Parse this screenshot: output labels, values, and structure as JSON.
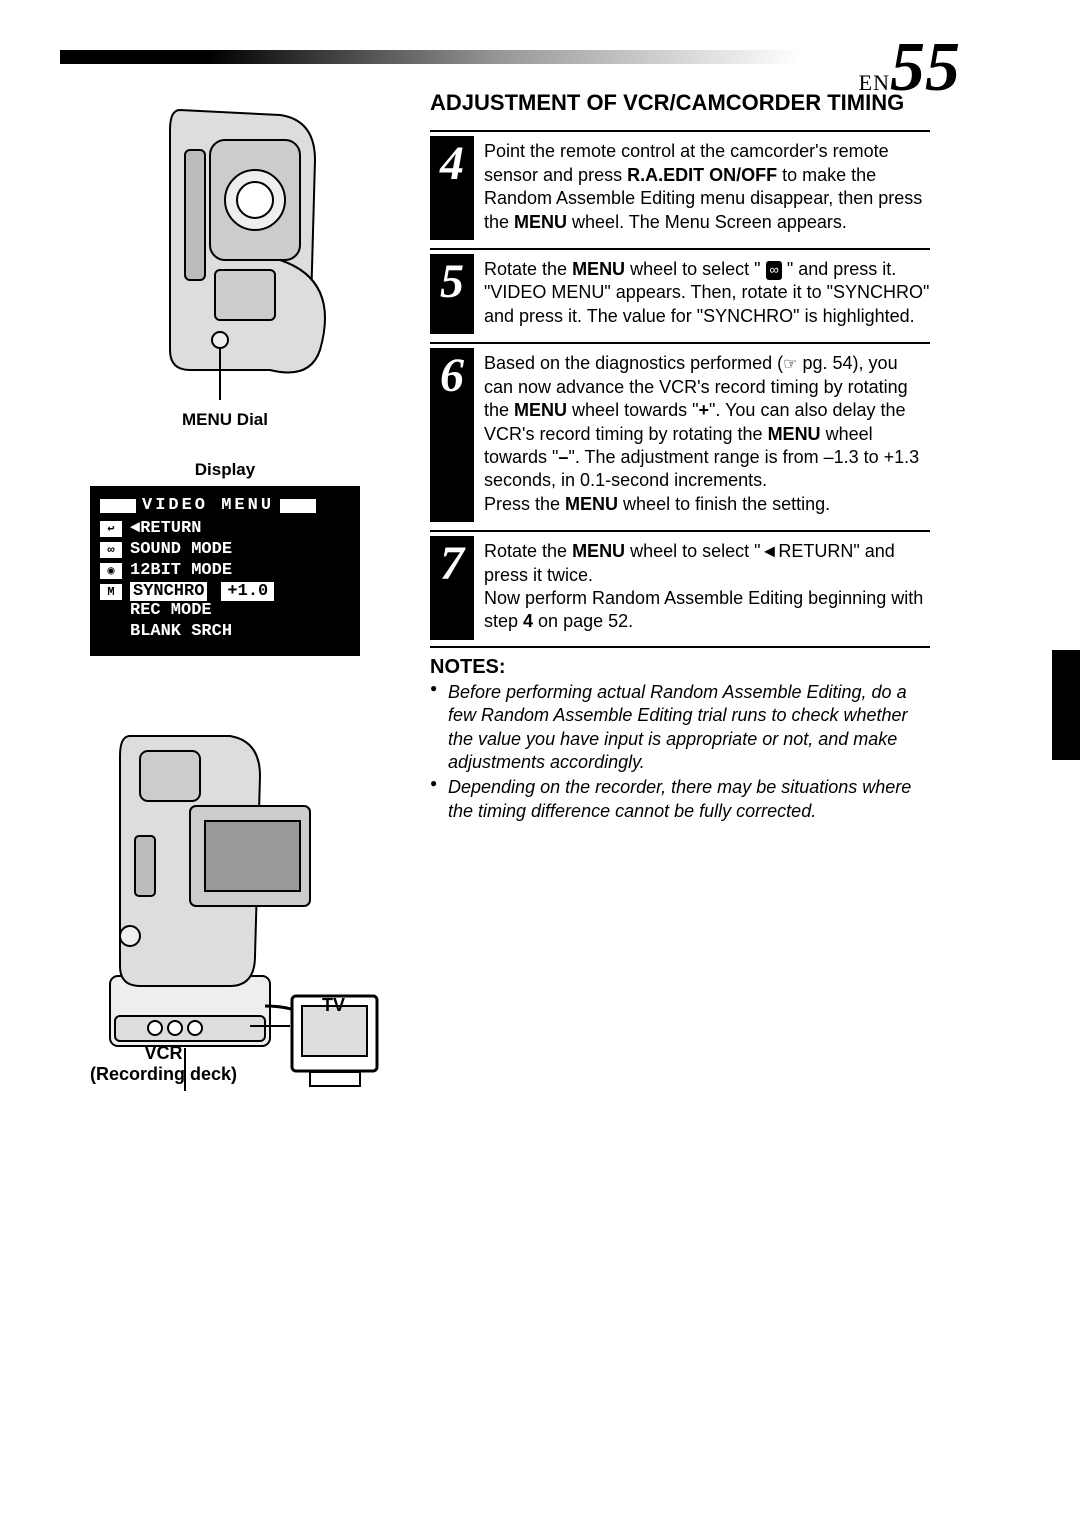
{
  "page": {
    "lang": "EN",
    "number": "55"
  },
  "left": {
    "menu_dial_label": "MENU Dial",
    "display_label": "Display",
    "video_menu": {
      "title": "VIDEO MENU",
      "items": [
        "◄RETURN",
        "SOUND MODE",
        "12BIT MODE"
      ],
      "highlighted": "SYNCHRO",
      "highlighted_value": "+1.0",
      "items_after": [
        "REC MODE",
        "BLANK SRCH"
      ]
    },
    "vcr_label": "VCR",
    "vcr_sub": "(Recording deck)",
    "tv_label": "TV"
  },
  "section_title": "ADJUSTMENT OF VCR/CAMCORDER TIMING",
  "steps": [
    {
      "num": "4",
      "parts": [
        {
          "t": "Point the remote control at the camcorder's remote sensor and press "
        },
        {
          "b": "R.A.EDIT ON/OFF"
        },
        {
          "t": " to make the Random Assemble Editing menu disappear, then press the "
        },
        {
          "b": "MENU"
        },
        {
          "t": " wheel. The Menu Screen appears."
        }
      ]
    },
    {
      "num": "5",
      "parts": [
        {
          "t": "Rotate the "
        },
        {
          "b": "MENU"
        },
        {
          "t": " wheel to select \" "
        },
        {
          "icon": "tape"
        },
        {
          "t": " \" and press it. \"VIDEO MENU\" appears. Then, rotate it to \"SYNCHRO\" and press it. The value for \"SYNCHRO\" is highlighted."
        }
      ]
    },
    {
      "num": "6",
      "parts": [
        {
          "t": "Based on the diagnostics performed ("
        },
        {
          "icon": "hand"
        },
        {
          "t": " pg. 54), you can now advance the VCR's record timing by rotating the "
        },
        {
          "b": "MENU"
        },
        {
          "t": " wheel towards \""
        },
        {
          "b": "+"
        },
        {
          "t": "\". You can also delay the VCR's record timing by rotating the "
        },
        {
          "b": "MENU"
        },
        {
          "t": " wheel towards \""
        },
        {
          "b": "–"
        },
        {
          "t": "\". The adjustment range is from –1.3 to +1.3 seconds, in 0.1-second increments."
        },
        {
          "br": true
        },
        {
          "t": "Press the "
        },
        {
          "b": "MENU"
        },
        {
          "t": " wheel to finish the setting."
        }
      ]
    },
    {
      "num": "7",
      "parts": [
        {
          "t": "Rotate the "
        },
        {
          "b": "MENU"
        },
        {
          "t": " wheel to select \"◄RETURN\" and press it twice."
        },
        {
          "br": true
        },
        {
          "t": "Now perform Random Assemble Editing beginning with step "
        },
        {
          "b": "4"
        },
        {
          "t": " on page 52."
        }
      ]
    }
  ],
  "notes": {
    "heading": "NOTES:",
    "items": [
      "Before performing actual Random Assemble Editing, do a few Random Assemble Editing trial runs to check whether the value you have input is appropriate or not, and make adjustments accordingly.",
      "Depending on the recorder, there may be situations where the timing difference cannot be fully corrected."
    ]
  },
  "colors": {
    "black": "#000000",
    "white": "#ffffff"
  }
}
